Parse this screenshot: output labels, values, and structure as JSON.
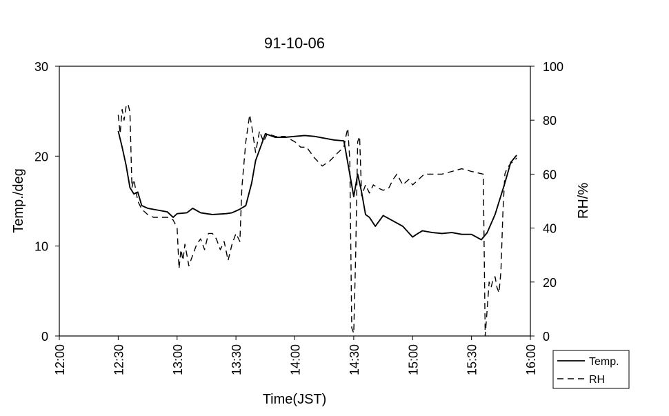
{
  "chart_data": {
    "type": "line",
    "title": "91-10-06",
    "xlabel": "Time(JST)",
    "ylabel_left": "Temp./deg",
    "ylabel_right": "RH/%",
    "x_ticks": [
      "12:00",
      "12:30",
      "13:00",
      "13:30",
      "14:00",
      "14:30",
      "15:00",
      "15:30",
      "16:00"
    ],
    "y_ticks_left": [
      "0",
      "10",
      "20",
      "30"
    ],
    "y_ticks_right": [
      "0",
      "20",
      "40",
      "60",
      "80",
      "100"
    ],
    "xlim": [
      "12:00",
      "16:00"
    ],
    "ylim_left": [
      0,
      30
    ],
    "ylim_right": [
      0,
      100
    ],
    "grid": false,
    "legend_position": "bottom-right, outside plot",
    "legend": [
      "Temp.",
      "RH"
    ],
    "series": [
      {
        "name": "Temp.",
        "axis": "left",
        "style": "solid",
        "x": [
          "12:30",
          "12:32",
          "12:34",
          "12:36",
          "12:38",
          "12:40",
          "12:42",
          "12:45",
          "12:50",
          "12:55",
          "12:58",
          "13:00",
          "13:05",
          "13:08",
          "13:12",
          "13:18",
          "13:25",
          "13:28",
          "13:32",
          "13:35",
          "13:38",
          "13:40",
          "13:45",
          "13:50",
          "13:55",
          "14:00",
          "14:05",
          "14:10",
          "14:15",
          "14:20",
          "14:25",
          "14:28",
          "14:30",
          "14:32",
          "14:34",
          "14:36",
          "14:38",
          "14:41",
          "14:45",
          "14:50",
          "14:55",
          "15:00",
          "15:02",
          "15:05",
          "15:10",
          "15:15",
          "15:20",
          "15:25",
          "15:30",
          "15:35",
          "15:38",
          "15:42",
          "15:47",
          "15:50",
          "15:53"
        ],
        "values": [
          22.8,
          21,
          19,
          16.5,
          15.8,
          16,
          14.5,
          14.2,
          14,
          13.8,
          13.2,
          13.6,
          13.7,
          14.2,
          13.7,
          13.5,
          13.6,
          13.7,
          14.1,
          14.5,
          17,
          19.5,
          22.5,
          22.1,
          22.1,
          22.2,
          22.3,
          22.2,
          22.0,
          21.8,
          21.7,
          18,
          15.5,
          18,
          16,
          13.5,
          13.2,
          12.2,
          13.4,
          12.8,
          12.2,
          11.0,
          11.3,
          11.7,
          11.5,
          11.4,
          11.5,
          11.3,
          11.3,
          10.7,
          11.5,
          13.5,
          17,
          19.3,
          20.1
        ]
      },
      {
        "name": "RH",
        "axis": "right",
        "style": "dashed",
        "x": [
          "12:30",
          "12:31",
          "12:32",
          "12:33",
          "12:34",
          "12:35",
          "12:36",
          "12:37",
          "12:38",
          "12:40",
          "12:42",
          "12:45",
          "12:48",
          "12:52",
          "12:55",
          "12:58",
          "13:00",
          "13:01",
          "13:02",
          "13:03",
          "13:04",
          "13:05",
          "13:06",
          "13:08",
          "13:10",
          "13:12",
          "13:14",
          "13:16",
          "13:18",
          "13:20",
          "13:22",
          "13:24",
          "13:26",
          "13:28",
          "13:30",
          "13:32",
          "13:33",
          "13:35",
          "13:37",
          "13:38",
          "13:40",
          "13:42",
          "13:44",
          "13:46",
          "13:50",
          "13:55",
          "14:00",
          "14:03",
          "14:06",
          "14:10",
          "14:14",
          "14:18",
          "14:22",
          "14:25",
          "14:26",
          "14:27",
          "14:28",
          "14:29",
          "14:30",
          "14:31",
          "14:32",
          "14:33",
          "14:34",
          "14:36",
          "14:38",
          "14:40",
          "14:42",
          "14:45",
          "14:48",
          "14:50",
          "14:52",
          "14:55",
          "14:58",
          "15:00",
          "15:03",
          "15:06",
          "15:10",
          "15:15",
          "15:20",
          "15:25",
          "15:30",
          "15:36",
          "15:37",
          "15:38",
          "15:39",
          "15:40",
          "15:41",
          "15:42",
          "15:43",
          "15:44",
          "15:45",
          "15:46",
          "15:47",
          "15:48",
          "15:50",
          "15:52",
          "15:53"
        ],
        "values": [
          82,
          75,
          84,
          80,
          85,
          86,
          83,
          55,
          58,
          50,
          47,
          45,
          44,
          44,
          44,
          43,
          40,
          25,
          32,
          28,
          34,
          30,
          26,
          30,
          34,
          36,
          32,
          38,
          38,
          36,
          32,
          35,
          28,
          34,
          38,
          35,
          55,
          72,
          82,
          78,
          68,
          76,
          72,
          75,
          74,
          74,
          72,
          70,
          70,
          66,
          63,
          65,
          68,
          70,
          74,
          77,
          65,
          3,
          1,
          30,
          72,
          74,
          52,
          56,
          53,
          56,
          55,
          54,
          55,
          58,
          60,
          56,
          58,
          56,
          58,
          60,
          60,
          60,
          61,
          62,
          61,
          60,
          0,
          10,
          20,
          18,
          21,
          22,
          18,
          16,
          24,
          46,
          60,
          62,
          64,
          65,
          66
        ]
      }
    ]
  }
}
